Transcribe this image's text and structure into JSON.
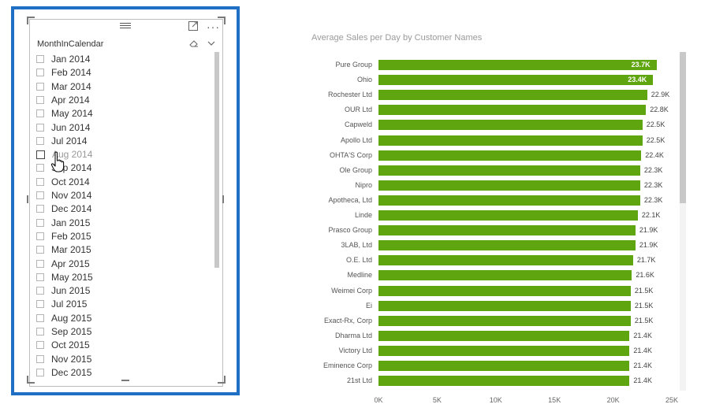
{
  "slicer": {
    "title": "MonthInCalendar",
    "focus_icon": "focus-mode-icon",
    "more_icon": "more-options-icon",
    "clear_icon": "eraser-icon",
    "dropdown_icon": "chevron-down-icon",
    "hovered_item_index": 7,
    "items": [
      "Jan 2014",
      "Feb 2014",
      "Mar 2014",
      "Apr 2014",
      "May 2014",
      "Jun 2014",
      "Jul 2014",
      "Aug 2014",
      "Sep 2014",
      "Oct 2014",
      "Nov 2014",
      "Dec 2014",
      "Jan 2015",
      "Feb 2015",
      "Mar 2015",
      "Apr 2015",
      "May 2015",
      "Jun 2015",
      "Jul 2015",
      "Aug 2015",
      "Sep 2015",
      "Oct 2015",
      "Nov 2015",
      "Dec 2015"
    ],
    "accent_color": "#1f6fc5"
  },
  "chart_data": {
    "type": "bar",
    "orientation": "horizontal",
    "title": "Average Sales per Day by Customer Names",
    "xlabel": "",
    "ylabel": "",
    "categories": [
      "Pure Group",
      "Ohio",
      "Rochester Ltd",
      "OUR Ltd",
      "Capweld",
      "Apollo Ltd",
      "OHTA'S Corp",
      "Ole Group",
      "Nipro",
      "Apotheca, Ltd",
      "Linde",
      "Prasco Group",
      "3LAB, Ltd",
      "O.E. Ltd",
      "Medline",
      "Weimei Corp",
      "Ei",
      "Exact-Rx, Corp",
      "Dharma Ltd",
      "Victory Ltd",
      "Eminence Corp",
      "21st Ltd"
    ],
    "values": [
      23700,
      23400,
      22900,
      22800,
      22500,
      22500,
      22400,
      22300,
      22300,
      22300,
      22100,
      21900,
      21900,
      21700,
      21600,
      21500,
      21500,
      21500,
      21400,
      21400,
      21400,
      21400
    ],
    "data_labels": [
      "23.7K",
      "23.4K",
      "22.9K",
      "22.8K",
      "22.5K",
      "22.5K",
      "22.4K",
      "22.3K",
      "22.3K",
      "22.3K",
      "22.1K",
      "21.9K",
      "21.9K",
      "21.7K",
      "21.6K",
      "21.5K",
      "21.5K",
      "21.5K",
      "21.4K",
      "21.4K",
      "21.4K",
      "21.4K"
    ],
    "xlim": [
      0,
      25000
    ],
    "xticks": [
      0,
      5000,
      10000,
      15000,
      20000,
      25000
    ],
    "xtick_labels": [
      "0K",
      "5K",
      "10K",
      "15K",
      "20K",
      "25K"
    ],
    "inside_label_count": 2,
    "bar_color": "#5fa50f",
    "grid": false
  }
}
